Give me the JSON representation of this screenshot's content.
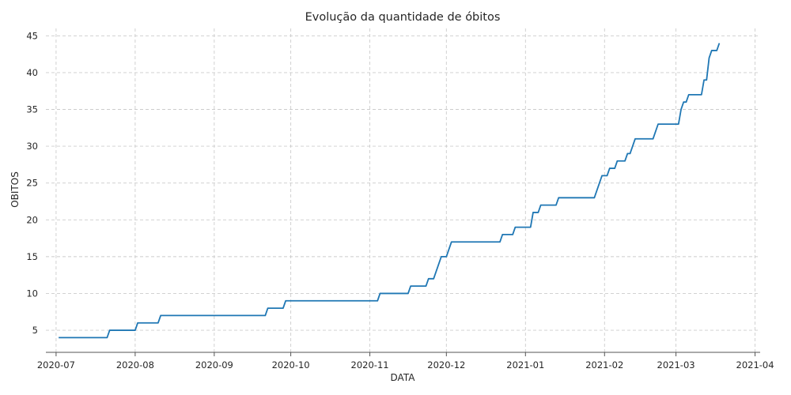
{
  "chart_data": {
    "type": "line",
    "title": "Evolução da quantidade de óbitos",
    "xlabel": "DATA",
    "ylabel": "OBITOS",
    "x_axis_type": "date",
    "xlim": [
      "2020-06-27",
      "2021-04-03"
    ],
    "ylim": [
      2.0,
      46.0
    ],
    "x_ticks": [
      "2020-07-01",
      "2020-08-01",
      "2020-09-01",
      "2020-10-01",
      "2020-11-01",
      "2020-12-01",
      "2021-01-01",
      "2021-02-01",
      "2021-03-01",
      "2021-04-01"
    ],
    "x_tick_labels": [
      "2020-07",
      "2020-08",
      "2020-09",
      "2020-10",
      "2020-11",
      "2020-12",
      "2021-01",
      "2021-02",
      "2021-03",
      "2021-04"
    ],
    "y_ticks": [
      5,
      10,
      15,
      20,
      25,
      30,
      35,
      40,
      45
    ],
    "grid": true,
    "legend": "none",
    "series": [
      {
        "color": "#1f77b4",
        "points": [
          [
            "2020-07-02",
            4
          ],
          [
            "2020-07-21",
            4
          ],
          [
            "2020-07-22",
            5
          ],
          [
            "2020-08-01",
            5
          ],
          [
            "2020-08-02",
            6
          ],
          [
            "2020-08-10",
            6
          ],
          [
            "2020-08-11",
            7
          ],
          [
            "2020-09-21",
            7
          ],
          [
            "2020-09-22",
            8
          ],
          [
            "2020-09-28",
            8
          ],
          [
            "2020-09-29",
            9
          ],
          [
            "2020-11-04",
            9
          ],
          [
            "2020-11-05",
            10
          ],
          [
            "2020-11-16",
            10
          ],
          [
            "2020-11-17",
            11
          ],
          [
            "2020-11-23",
            11
          ],
          [
            "2020-11-24",
            12
          ],
          [
            "2020-11-26",
            12
          ],
          [
            "2020-11-29",
            15
          ],
          [
            "2020-12-01",
            15
          ],
          [
            "2020-12-03",
            17
          ],
          [
            "2020-12-22",
            17
          ],
          [
            "2020-12-23",
            18
          ],
          [
            "2020-12-27",
            18
          ],
          [
            "2020-12-28",
            19
          ],
          [
            "2021-01-03",
            19
          ],
          [
            "2021-01-04",
            21
          ],
          [
            "2021-01-06",
            21
          ],
          [
            "2021-01-07",
            22
          ],
          [
            "2021-01-13",
            22
          ],
          [
            "2021-01-14",
            23
          ],
          [
            "2021-01-28",
            23
          ],
          [
            "2021-01-31",
            26
          ],
          [
            "2021-02-02",
            26
          ],
          [
            "2021-02-03",
            27
          ],
          [
            "2021-02-05",
            27
          ],
          [
            "2021-02-06",
            28
          ],
          [
            "2021-02-09",
            28
          ],
          [
            "2021-02-10",
            29
          ],
          [
            "2021-02-11",
            29
          ],
          [
            "2021-02-13",
            31
          ],
          [
            "2021-02-20",
            31
          ],
          [
            "2021-02-22",
            33
          ],
          [
            "2021-03-02",
            33
          ],
          [
            "2021-03-03",
            35
          ],
          [
            "2021-03-04",
            36
          ],
          [
            "2021-03-05",
            36
          ],
          [
            "2021-03-06",
            37
          ],
          [
            "2021-03-11",
            37
          ],
          [
            "2021-03-12",
            39
          ],
          [
            "2021-03-13",
            39
          ],
          [
            "2021-03-14",
            42
          ],
          [
            "2021-03-15",
            43
          ],
          [
            "2021-03-17",
            43
          ],
          [
            "2021-03-18",
            44
          ]
        ]
      }
    ]
  }
}
